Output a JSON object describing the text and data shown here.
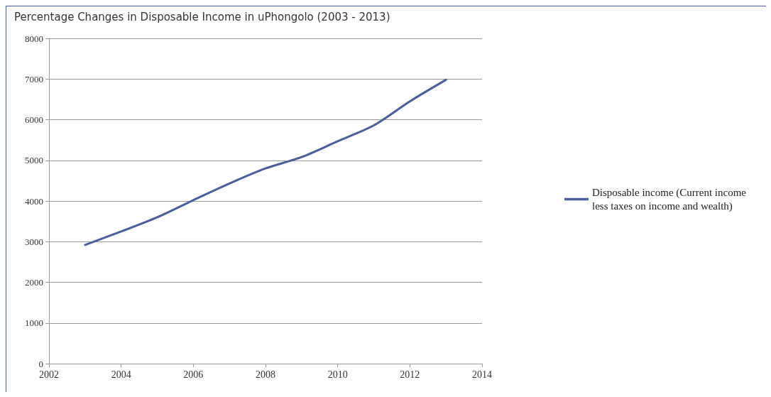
{
  "chart_data": {
    "type": "line",
    "title": "Percentage Changes in Disposable Income in uPhongolo (2003 - 2013)",
    "x": [
      2003,
      2004,
      2005,
      2006,
      2007,
      2008,
      2009,
      2010,
      2011,
      2012,
      2013
    ],
    "series": [
      {
        "name": "Disposable income (Current income less taxes on income and wealth)",
        "color": "#4a5e9c",
        "values": [
          2920,
          3250,
          3600,
          4020,
          4430,
          4800,
          5080,
          5470,
          5860,
          6450,
          6980
        ]
      }
    ],
    "xlim": [
      2002,
      2014
    ],
    "xticks": [
      2002,
      2004,
      2006,
      2008,
      2010,
      2012,
      2014
    ],
    "ylim": [
      0,
      8000
    ],
    "yticks": [
      0,
      1000,
      2000,
      3000,
      4000,
      5000,
      6000,
      7000,
      8000
    ],
    "grid": "y",
    "legend": "right",
    "marker": "none",
    "line_style": "solid"
  }
}
